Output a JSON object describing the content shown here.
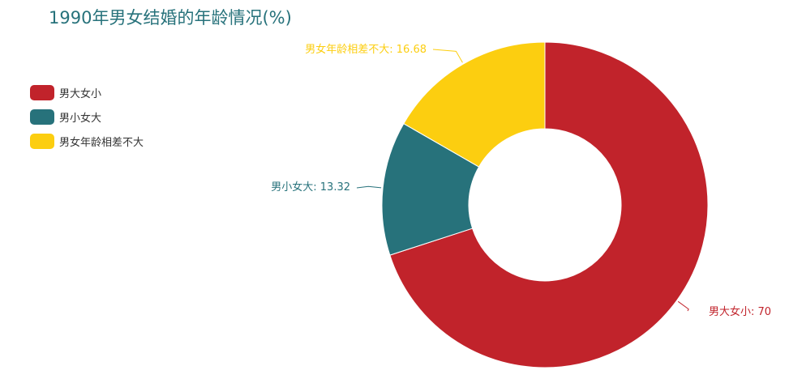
{
  "title": "1990年男女结婚的年龄情况(%)",
  "colors": {
    "title": "#27727b"
  },
  "chart_data": {
    "type": "pie",
    "variant": "donut",
    "title": "1990年男女结婚的年龄情况(%)",
    "legend_position": "left",
    "slices": [
      {
        "name": "男大女小",
        "value": 70,
        "color": "#c1232b",
        "label": "男大女小: 70"
      },
      {
        "name": "男小女大",
        "value": 13.32,
        "color": "#27727b",
        "label": "男小女大: 13.32"
      },
      {
        "name": "男女年龄相差不大",
        "value": 16.68,
        "color": "#fcce10",
        "label": "男女年龄相差不大: 16.68"
      }
    ]
  }
}
